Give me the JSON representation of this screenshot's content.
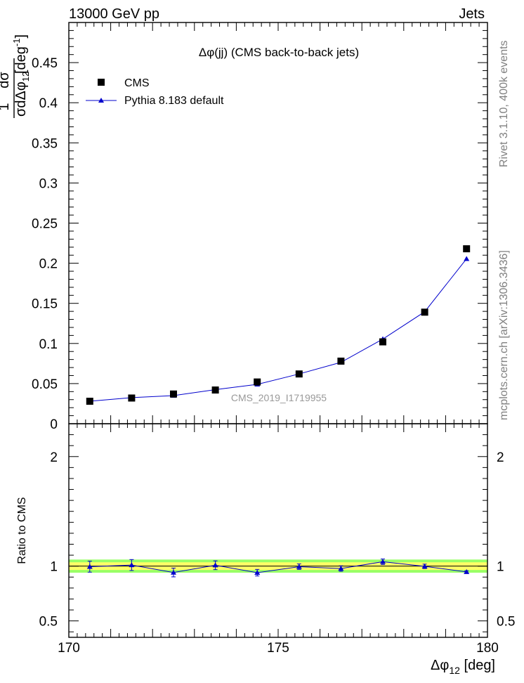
{
  "header": {
    "left": "13000 GeV pp",
    "right": "Jets"
  },
  "side_labels": {
    "rivet": "Rivet 3.1.10,  400k events",
    "mcplots": "mcplots.cern.ch [arXiv:1306.3436]"
  },
  "watermark": "CMS_2019_I1719955",
  "colors": {
    "data": "#000000",
    "mc": "#0000cc",
    "band_inner": "#ffff66",
    "band_outer": "#99ff66"
  },
  "chart_data": [
    {
      "type": "scatter",
      "title": "Δφ(jj) (CMS back-to-back jets)",
      "ylabel": "1/σ dσ/dΔφ12 [deg⁻¹]",
      "xlabel": "",
      "xlim": [
        170,
        180
      ],
      "ylim": [
        0,
        0.5
      ],
      "yticks": [
        "0",
        "0.05",
        "0.1",
        "0.15",
        "0.2",
        "0.25",
        "0.3",
        "0.35",
        "0.4",
        "0.45"
      ],
      "legend_position": "top-left",
      "x": [
        170.5,
        171.5,
        172.5,
        173.5,
        174.5,
        175.5,
        176.5,
        177.5,
        178.5,
        179.5
      ],
      "series": [
        {
          "name": "CMS",
          "marker": "square",
          "values": [
            0.028,
            0.032,
            0.037,
            0.042,
            0.052,
            0.062,
            0.078,
            0.102,
            0.139,
            0.218
          ]
        },
        {
          "name": "Pythia 8.183 default",
          "marker": "triangle",
          "values": [
            0.028,
            0.0325,
            0.035,
            0.0425,
            0.049,
            0.062,
            0.0765,
            0.1055,
            0.1395,
            0.2055
          ]
        }
      ]
    },
    {
      "type": "line",
      "ylabel": "Ratio to CMS",
      "xlabel": "Δφ12 [deg]",
      "xlim": [
        170,
        180
      ],
      "ylim": [
        0.35,
        2.3
      ],
      "xticks": [
        "170",
        "175",
        "180"
      ],
      "yticks": [
        "0.5",
        "1",
        "2"
      ],
      "band_outer": [
        0.94,
        1.06
      ],
      "band_inner": [
        0.965,
        1.035
      ],
      "x": [
        170.5,
        171.5,
        172.5,
        173.5,
        174.5,
        175.5,
        176.5,
        177.5,
        178.5,
        179.5
      ],
      "series": [
        {
          "values": [
            0.995,
            1.01,
            0.942,
            1.008,
            0.94,
            0.995,
            0.978,
            1.04,
            0.998,
            0.947
          ],
          "errors": [
            0.05,
            0.05,
            0.04,
            0.04,
            0.03,
            0.025,
            0.025,
            0.025,
            0.02,
            0.01
          ]
        }
      ]
    }
  ]
}
